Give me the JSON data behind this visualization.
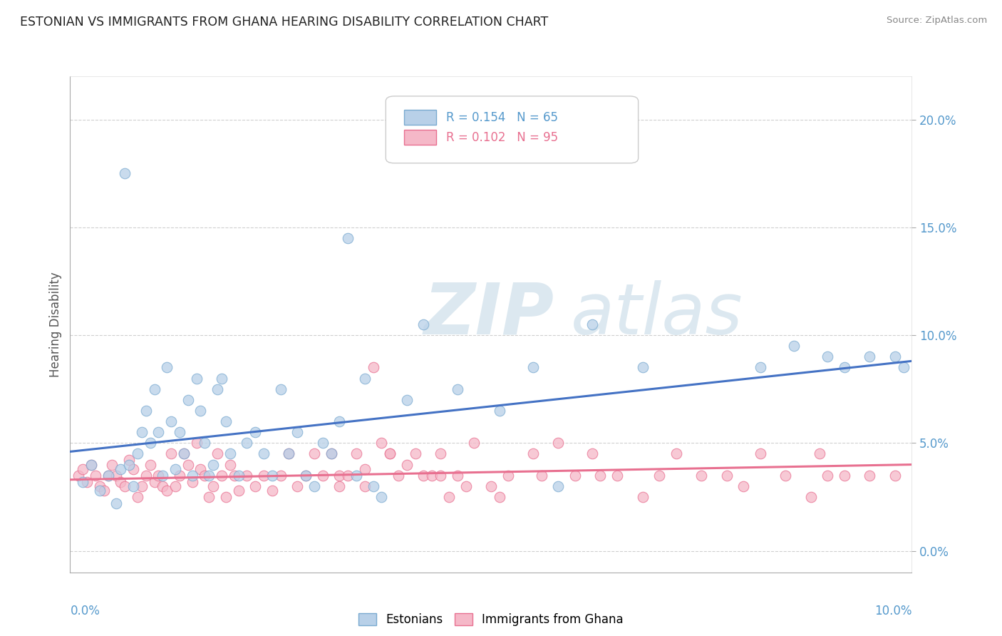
{
  "title": "ESTONIAN VS IMMIGRANTS FROM GHANA HEARING DISABILITY CORRELATION CHART",
  "source": "Source: ZipAtlas.com",
  "ylabel": "Hearing Disability",
  "xlim": [
    0.0,
    10.0
  ],
  "ylim": [
    -1.0,
    22.0
  ],
  "yticks_right": [
    0.0,
    5.0,
    10.0,
    15.0,
    20.0
  ],
  "ytick_labels_right": [
    "0.0%",
    "5.0%",
    "10.0%",
    "15.0%",
    "20.0%"
  ],
  "legend_r1": "R = 0.154",
  "legend_n1": "N = 65",
  "legend_r2": "R = 0.102",
  "legend_n2": "N = 95",
  "color_estonian": "#b8d0e8",
  "color_ghana": "#f5b8c8",
  "color_estonian_line": "#4472c4",
  "color_ghana_line": "#e87090",
  "color_estonian_edge": "#7aaad0",
  "color_ghana_edge": "#e87090",
  "watermark_zip": "ZIP",
  "watermark_atlas": "atlas",
  "background_color": "#ffffff",
  "grid_color": "#d0d0d0",
  "axis_label_color": "#5599cc",
  "title_color": "#222222",
  "estonians_x": [
    0.15,
    0.25,
    0.35,
    0.45,
    0.55,
    0.6,
    0.65,
    0.7,
    0.75,
    0.8,
    0.85,
    0.9,
    0.95,
    1.0,
    1.05,
    1.1,
    1.15,
    1.2,
    1.25,
    1.3,
    1.35,
    1.4,
    1.45,
    1.5,
    1.55,
    1.6,
    1.65,
    1.7,
    1.75,
    1.8,
    1.85,
    1.9,
    2.0,
    2.1,
    2.2,
    2.3,
    2.4,
    2.5,
    2.6,
    2.7,
    2.8,
    2.9,
    3.0,
    3.1,
    3.2,
    3.3,
    3.4,
    3.5,
    3.6,
    3.7,
    4.0,
    4.2,
    4.6,
    5.1,
    5.5,
    5.8,
    6.2,
    6.8,
    8.2,
    8.6,
    9.0,
    9.2,
    9.5,
    9.8,
    9.9
  ],
  "estonians_y": [
    3.2,
    4.0,
    2.8,
    3.5,
    2.2,
    3.8,
    17.5,
    4.0,
    3.0,
    4.5,
    5.5,
    6.5,
    5.0,
    7.5,
    5.5,
    3.5,
    8.5,
    6.0,
    3.8,
    5.5,
    4.5,
    7.0,
    3.5,
    8.0,
    6.5,
    5.0,
    3.5,
    4.0,
    7.5,
    8.0,
    6.0,
    4.5,
    3.5,
    5.0,
    5.5,
    4.5,
    3.5,
    7.5,
    4.5,
    5.5,
    3.5,
    3.0,
    5.0,
    4.5,
    6.0,
    14.5,
    3.5,
    8.0,
    3.0,
    2.5,
    7.0,
    10.5,
    7.5,
    6.5,
    8.5,
    3.0,
    10.5,
    8.5,
    8.5,
    9.5,
    9.0,
    8.5,
    9.0,
    9.0,
    8.5
  ],
  "ghana_x": [
    0.1,
    0.15,
    0.2,
    0.25,
    0.3,
    0.35,
    0.4,
    0.45,
    0.5,
    0.55,
    0.6,
    0.65,
    0.7,
    0.75,
    0.8,
    0.85,
    0.9,
    0.95,
    1.0,
    1.05,
    1.1,
    1.15,
    1.2,
    1.25,
    1.3,
    1.35,
    1.4,
    1.45,
    1.5,
    1.55,
    1.6,
    1.65,
    1.7,
    1.75,
    1.8,
    1.85,
    1.9,
    1.95,
    2.0,
    2.1,
    2.2,
    2.3,
    2.4,
    2.5,
    2.6,
    2.7,
    2.8,
    2.9,
    3.0,
    3.1,
    3.2,
    3.3,
    3.4,
    3.5,
    3.6,
    3.7,
    3.8,
    3.9,
    4.0,
    4.2,
    4.4,
    4.6,
    4.8,
    5.0,
    5.2,
    5.5,
    5.8,
    6.0,
    6.2,
    6.5,
    6.8,
    7.0,
    7.2,
    7.5,
    7.8,
    8.0,
    8.2,
    8.5,
    8.8,
    9.0,
    9.2,
    9.5,
    9.8,
    4.3,
    4.5,
    4.7,
    5.1,
    3.2,
    3.5,
    3.8,
    4.1,
    4.4,
    5.6,
    6.3,
    8.9
  ],
  "ghana_y": [
    3.5,
    3.8,
    3.2,
    4.0,
    3.5,
    3.0,
    2.8,
    3.5,
    4.0,
    3.5,
    3.2,
    3.0,
    4.2,
    3.8,
    2.5,
    3.0,
    3.5,
    4.0,
    3.2,
    3.5,
    3.0,
    2.8,
    4.5,
    3.0,
    3.5,
    4.5,
    4.0,
    3.2,
    5.0,
    3.8,
    3.5,
    2.5,
    3.0,
    4.5,
    3.5,
    2.5,
    4.0,
    3.5,
    2.8,
    3.5,
    3.0,
    3.5,
    2.8,
    3.5,
    4.5,
    3.0,
    3.5,
    4.5,
    3.5,
    4.5,
    3.5,
    3.5,
    4.5,
    3.8,
    8.5,
    5.0,
    4.5,
    3.5,
    4.0,
    3.5,
    4.5,
    3.5,
    5.0,
    3.0,
    3.5,
    4.5,
    5.0,
    3.5,
    4.5,
    3.5,
    2.5,
    3.5,
    4.5,
    3.5,
    3.5,
    3.0,
    4.5,
    3.5,
    2.5,
    3.5,
    3.5,
    3.5,
    3.5,
    3.5,
    2.5,
    3.0,
    2.5,
    3.0,
    3.0,
    4.5,
    4.5,
    3.5,
    3.5,
    3.5,
    4.5
  ],
  "estonian_trendline_x": [
    0.0,
    10.0
  ],
  "estonian_trendline_y": [
    4.6,
    8.8
  ],
  "ghana_trendline_x": [
    0.0,
    10.0
  ],
  "ghana_trendline_y": [
    3.3,
    4.0
  ]
}
